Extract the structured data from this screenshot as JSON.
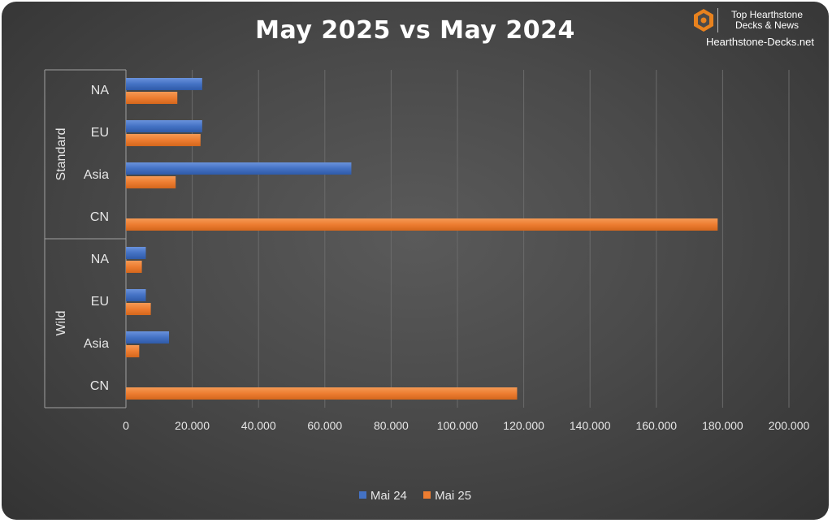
{
  "chart_data": {
    "type": "bar",
    "orientation": "horizontal",
    "title": "May 2025 vs May 2024",
    "groups": [
      {
        "name": "Standard",
        "categories": [
          "NA",
          "EU",
          "Asia",
          "CN"
        ]
      },
      {
        "name": "Wild",
        "categories": [
          "NA",
          "EU",
          "Asia",
          "CN"
        ]
      }
    ],
    "series": [
      {
        "name": "Mai 24",
        "color": "#4472c4",
        "values": [
          23000,
          23000,
          68000,
          0,
          6000,
          6000,
          13000,
          0
        ]
      },
      {
        "name": "Mai 25",
        "color": "#ed7d31",
        "values": [
          15500,
          22500,
          15000,
          178500,
          4800,
          7500,
          4000,
          118000
        ]
      }
    ],
    "xlim": [
      0,
      200000
    ],
    "xticks": [
      "0",
      "20.000",
      "40.000",
      "60.000",
      "80.000",
      "100.000",
      "120.000",
      "140.000",
      "160.000",
      "180.000",
      "200.000"
    ],
    "xstep": 20000,
    "grid": true,
    "legend_position": "bottom"
  },
  "brand": {
    "line1": "Top Hearthstone",
    "line2": "Decks & News",
    "site": "Hearthstone-Decks.net",
    "logo_icon": "hexagon-logo-icon",
    "logo_color": "#e8821e"
  }
}
